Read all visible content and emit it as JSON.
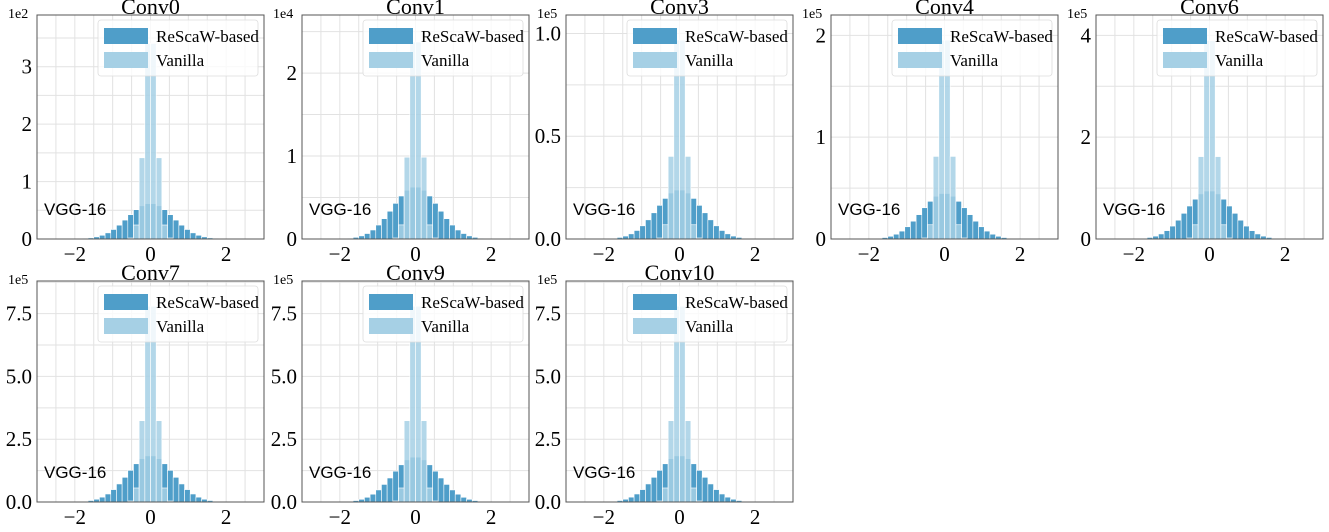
{
  "chart_data": [
    {
      "type": "bar",
      "title": "Conv0",
      "exponent": "1e2",
      "model_label": "VGG-16",
      "legend": [
        "ReScaW-based",
        "Vanilla"
      ],
      "xlim": [
        -3,
        3
      ],
      "ylim": [
        0,
        3.9
      ],
      "xticks": [
        -2,
        0,
        2
      ],
      "xtick_labels": [
        "−2",
        "0",
        "2"
      ],
      "yticks": [
        0,
        1,
        2,
        3
      ],
      "ytick_labels": [
        "0",
        "1",
        "2",
        "3"
      ],
      "rescaw_peak": 0.62,
      "rescaw_sigma": 0.6,
      "vanilla_peak": 3.8,
      "vanilla_sigma": 0.16
    },
    {
      "type": "bar",
      "title": "Conv1",
      "exponent": "1e4",
      "model_label": "VGG-16",
      "legend": [
        "ReScaW-based",
        "Vanilla"
      ],
      "xlim": [
        -3,
        3
      ],
      "ylim": [
        0,
        2.7
      ],
      "xticks": [
        -2,
        0,
        2
      ],
      "xtick_labels": [
        "−2",
        "0",
        "2"
      ],
      "yticks": [
        0,
        1,
        2
      ],
      "ytick_labels": [
        "0",
        "1",
        "2"
      ],
      "rescaw_peak": 0.63,
      "rescaw_sigma": 0.6,
      "vanilla_peak": 2.65,
      "vanilla_sigma": 0.16
    },
    {
      "type": "bar",
      "title": "Conv3",
      "exponent": "1e5",
      "model_label": "VGG-16",
      "legend": [
        "ReScaW-based",
        "Vanilla"
      ],
      "xlim": [
        -3,
        3
      ],
      "ylim": [
        0,
        1.09
      ],
      "xticks": [
        -2,
        0,
        2
      ],
      "xtick_labels": [
        "−2",
        "0",
        "2"
      ],
      "yticks": [
        0,
        0.5,
        1.0
      ],
      "ytick_labels": [
        "0.0",
        "0.5",
        "1.0"
      ],
      "rescaw_peak": 0.24,
      "rescaw_sigma": 0.6,
      "vanilla_peak": 1.08,
      "vanilla_sigma": 0.16
    },
    {
      "type": "bar",
      "title": "Conv4",
      "exponent": "1e5",
      "model_label": "VGG-16",
      "legend": [
        "ReScaW-based",
        "Vanilla"
      ],
      "xlim": [
        -3,
        3
      ],
      "ylim": [
        0,
        2.2
      ],
      "xticks": [
        -2,
        0,
        2
      ],
      "xtick_labels": [
        "−2",
        "0",
        "2"
      ],
      "yticks": [
        0,
        1,
        2
      ],
      "ytick_labels": [
        "0",
        "1",
        "2"
      ],
      "rescaw_peak": 0.45,
      "rescaw_sigma": 0.6,
      "vanilla_peak": 2.18,
      "vanilla_sigma": 0.16
    },
    {
      "type": "bar",
      "title": "Conv6",
      "exponent": "1e5",
      "model_label": "VGG-16",
      "legend": [
        "ReScaW-based",
        "Vanilla"
      ],
      "xlim": [
        -3,
        3
      ],
      "ylim": [
        0,
        4.4
      ],
      "xticks": [
        -2,
        0,
        2
      ],
      "xtick_labels": [
        "−2",
        "0",
        "2"
      ],
      "yticks": [
        0,
        2,
        4
      ],
      "ytick_labels": [
        "0",
        "2",
        "4"
      ],
      "rescaw_peak": 0.95,
      "rescaw_sigma": 0.6,
      "vanilla_peak": 4.35,
      "vanilla_sigma": 0.16
    },
    {
      "type": "bar",
      "title": "Conv7",
      "exponent": "1e5",
      "model_label": "VGG-16",
      "legend": [
        "ReScaW-based",
        "Vanilla"
      ],
      "xlim": [
        -3,
        3
      ],
      "ylim": [
        0,
        8.8
      ],
      "xticks": [
        -2,
        0,
        2
      ],
      "xtick_labels": [
        "−2",
        "0",
        "2"
      ],
      "yticks": [
        0,
        2.5,
        5.0,
        7.5
      ],
      "ytick_labels": [
        "0.0",
        "2.5",
        "5.0",
        "7.5"
      ],
      "rescaw_peak": 1.85,
      "rescaw_sigma": 0.6,
      "vanilla_peak": 8.7,
      "vanilla_sigma": 0.16
    },
    {
      "type": "bar",
      "title": "Conv9",
      "exponent": "1e5",
      "model_label": "VGG-16",
      "legend": [
        "ReScaW-based",
        "Vanilla"
      ],
      "xlim": [
        -3,
        3
      ],
      "ylim": [
        0,
        8.8
      ],
      "xticks": [
        -2,
        0,
        2
      ],
      "xtick_labels": [
        "−2",
        "0",
        "2"
      ],
      "yticks": [
        0,
        2.5,
        5.0,
        7.5
      ],
      "ytick_labels": [
        "0.0",
        "2.5",
        "5.0",
        "7.5"
      ],
      "rescaw_peak": 1.8,
      "rescaw_sigma": 0.6,
      "vanilla_peak": 8.7,
      "vanilla_sigma": 0.16
    },
    {
      "type": "bar",
      "title": "Conv10",
      "exponent": "1e5",
      "model_label": "VGG-16",
      "legend": [
        "ReScaW-based",
        "Vanilla"
      ],
      "xlim": [
        -3,
        3
      ],
      "ylim": [
        0,
        8.8
      ],
      "xticks": [
        -2,
        0,
        2
      ],
      "xtick_labels": [
        "−2",
        "0",
        "2"
      ],
      "yticks": [
        0,
        2.5,
        5.0,
        7.5
      ],
      "ytick_labels": [
        "0.0",
        "2.5",
        "5.0",
        "7.5"
      ],
      "rescaw_peak": 1.85,
      "rescaw_sigma": 0.6,
      "vanilla_peak": 8.7,
      "vanilla_sigma": 0.16
    }
  ],
  "colors": {
    "rescaw": "#4f9ec9",
    "vanilla": "#a6d0e5",
    "grid": "#e2e2e2",
    "axis": "#555555"
  },
  "bins": {
    "start": -3.0,
    "width": 0.15,
    "count": 40
  }
}
